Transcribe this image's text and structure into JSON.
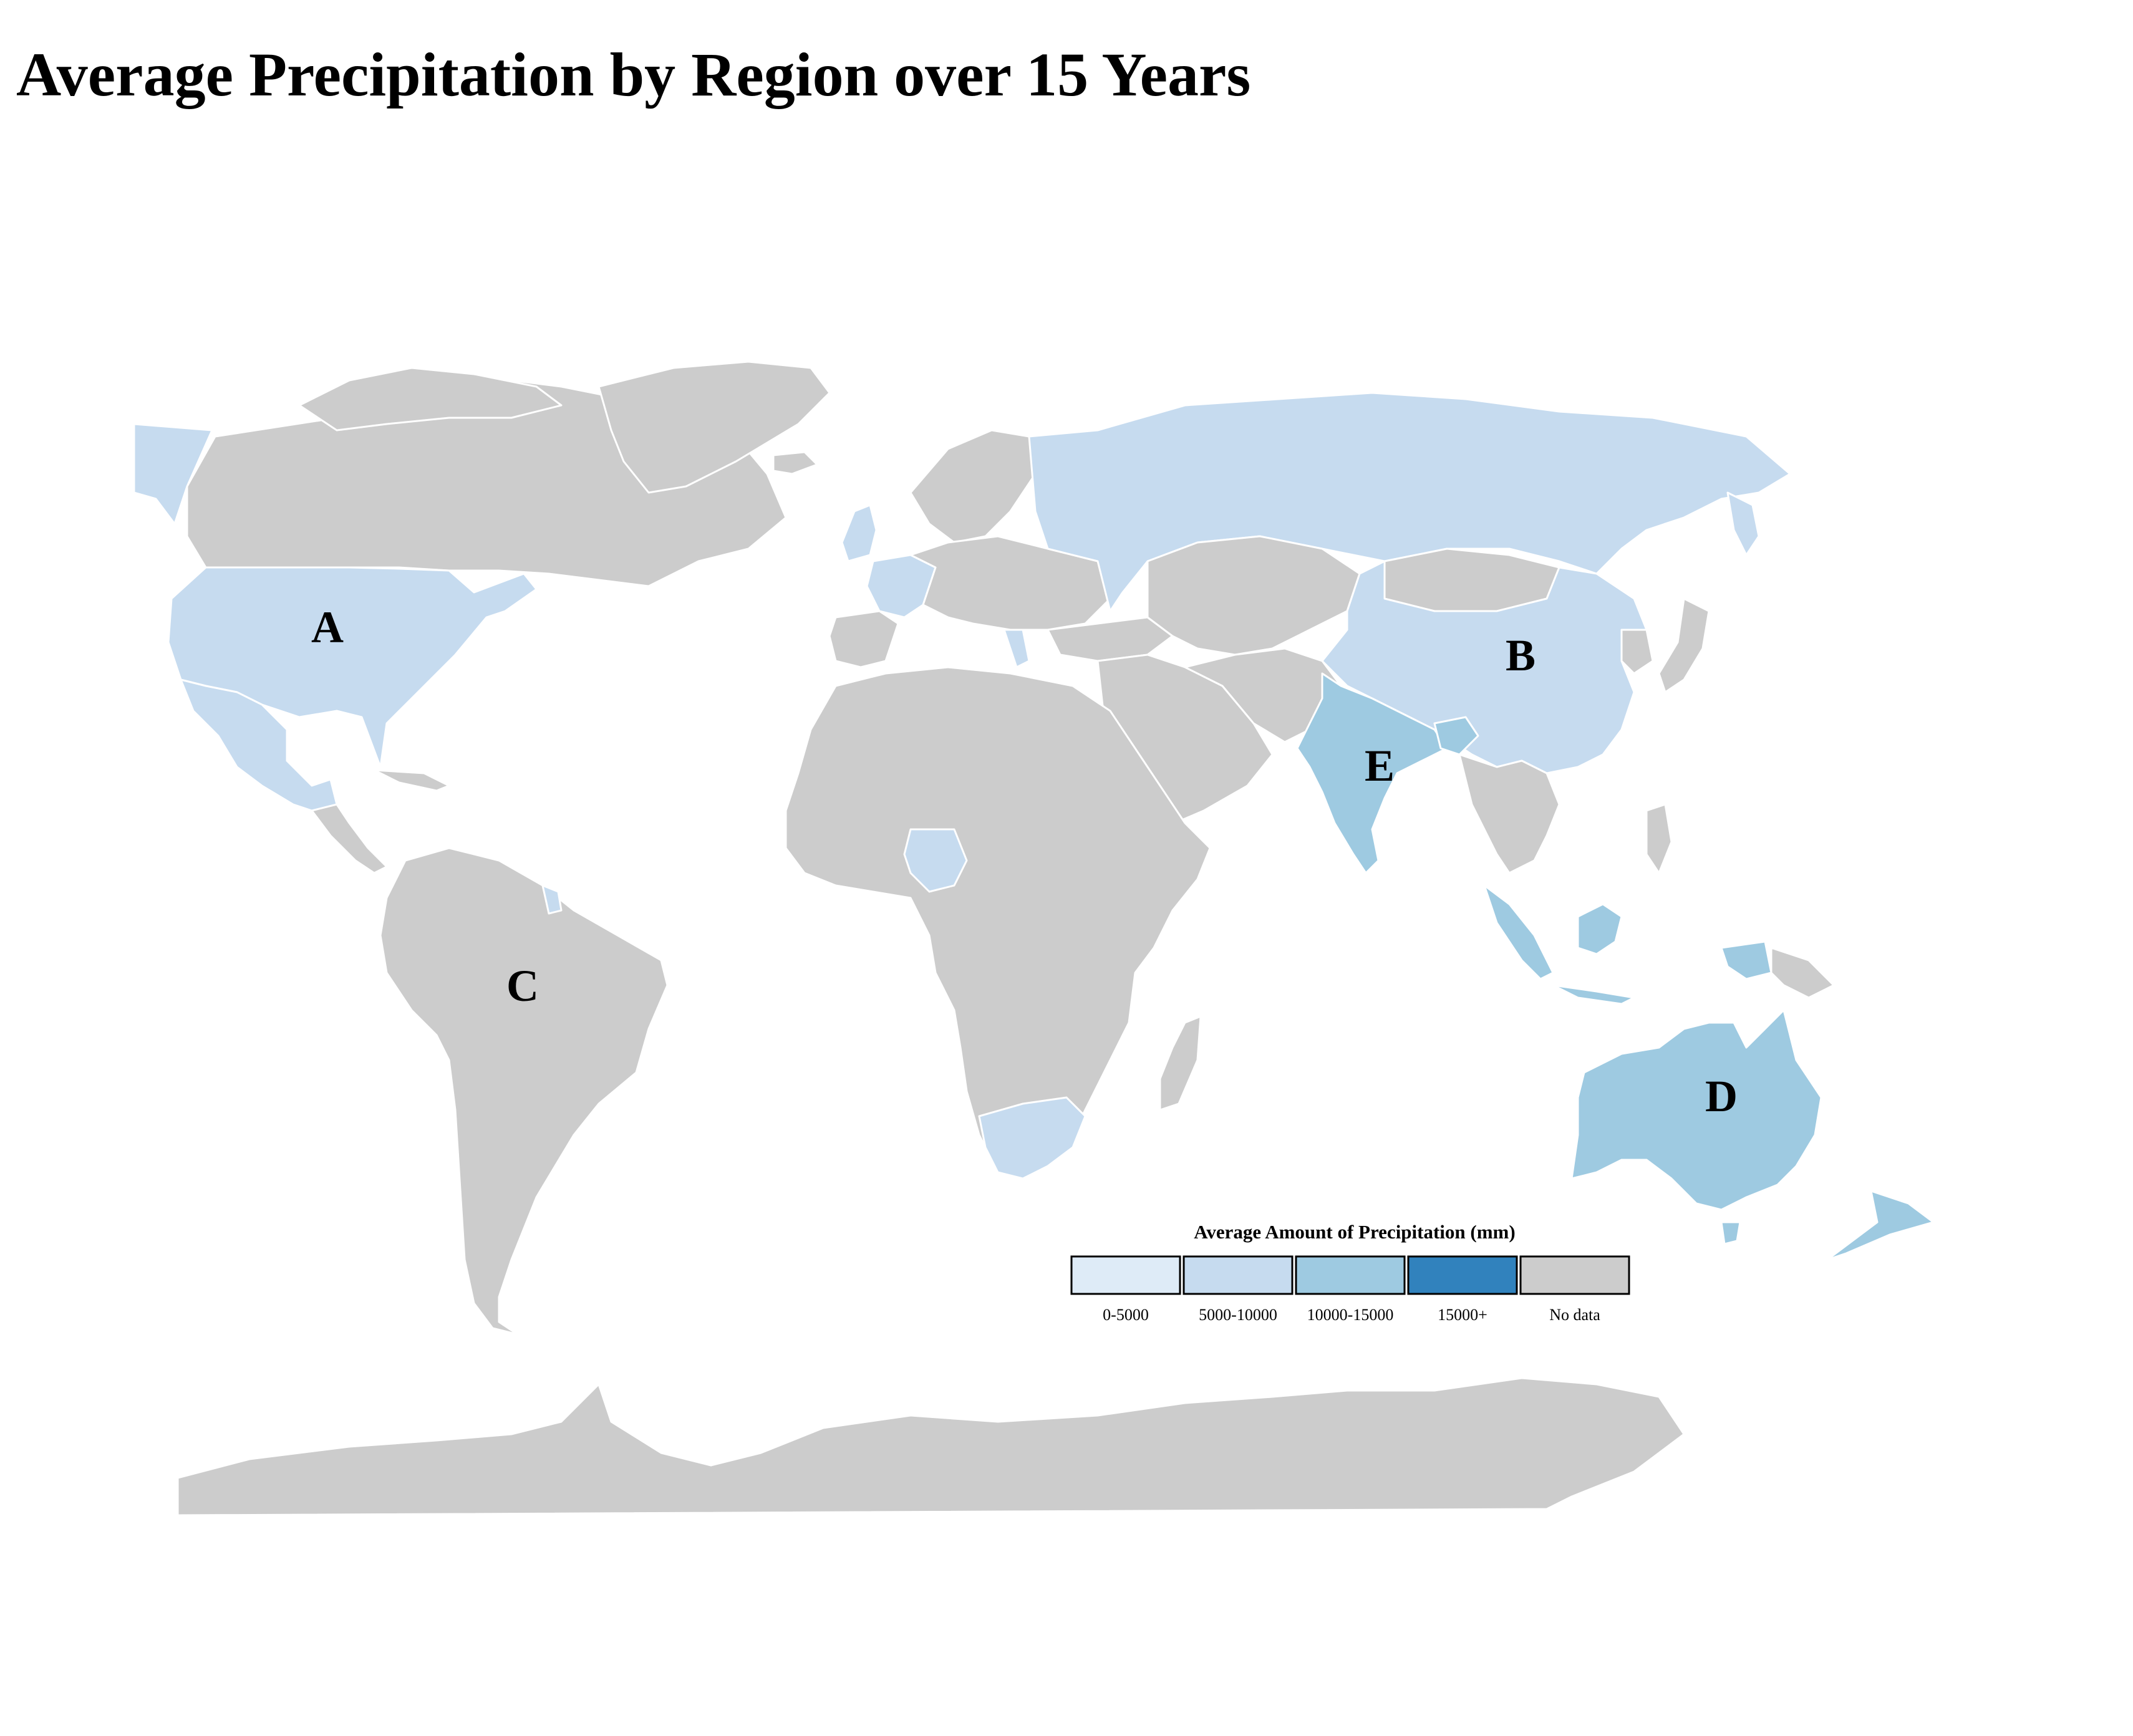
{
  "title": "Average Precipitation by Region over 15 Years",
  "colors": {
    "no_data": "#cccccc",
    "range_0_5000": "#deebf7",
    "range_5000_10000": "#c6dbef",
    "range_10000_15000": "#9ecae1",
    "range_15000_plus": "#3182bd",
    "border": "#ffffff"
  },
  "regions": [
    {
      "label": "A",
      "bin": "5000-10000"
    },
    {
      "label": "B",
      "bin": "5000-10000"
    },
    {
      "label": "C",
      "bin": "No data"
    },
    {
      "label": "D",
      "bin": "10000-15000"
    },
    {
      "label": "E",
      "bin": "10000-15000"
    }
  ],
  "legend": {
    "title": "Average Amount of Precipitation (mm)",
    "items": [
      {
        "label": "0-5000",
        "color": "#deebf7"
      },
      {
        "label": "5000-10000",
        "color": "#c6dbef"
      },
      {
        "label": "10000-15000",
        "color": "#9ecae1"
      },
      {
        "label": "15000+",
        "color": "#3182bd"
      },
      {
        "label": "No data",
        "color": "#cccccc"
      }
    ]
  }
}
